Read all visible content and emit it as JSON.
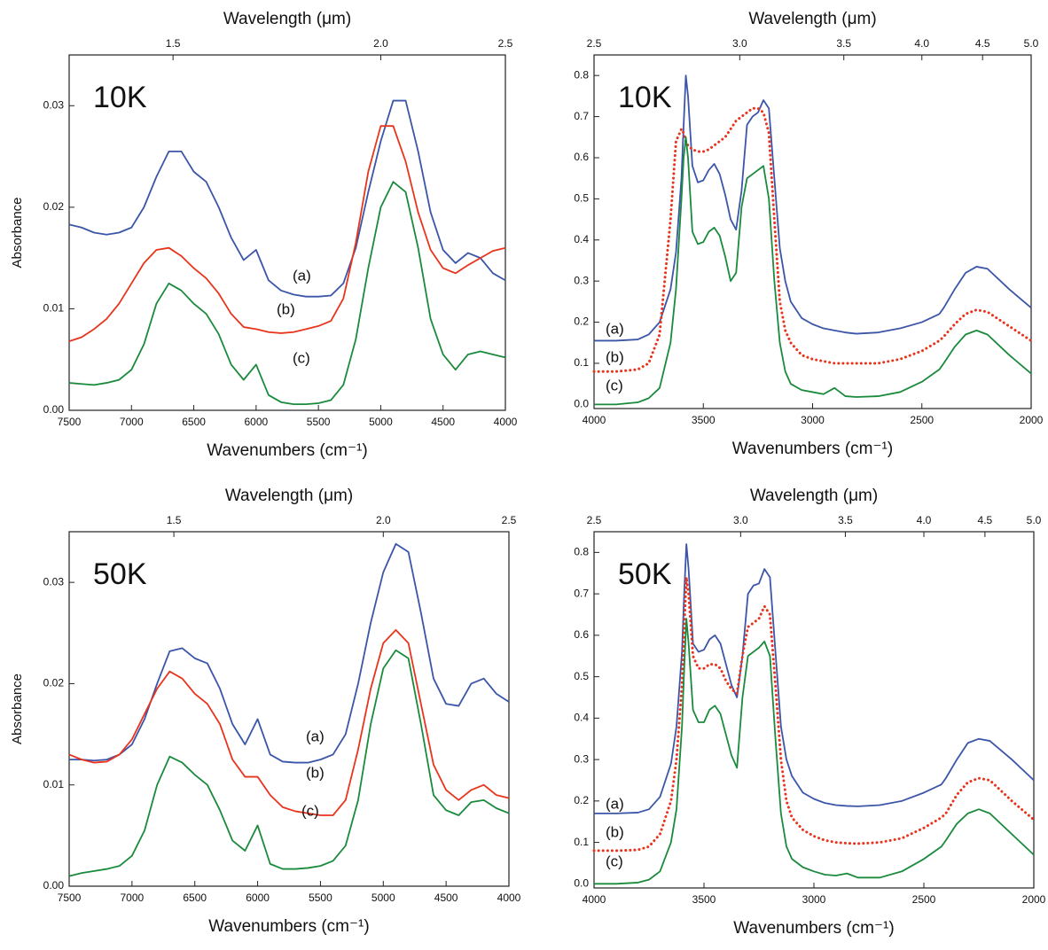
{
  "chart_data": [
    {
      "type": "line",
      "annotation": "10K",
      "x_label": "Wavenumbers (cm⁻¹)",
      "x2_label": "Wavelength (μm)",
      "y_label": "Absorbance",
      "x": [
        7500,
        7400,
        7300,
        7200,
        7100,
        7000,
        6900,
        6800,
        6700,
        6600,
        6500,
        6400,
        6300,
        6200,
        6100,
        6000,
        5900,
        5800,
        5700,
        5600,
        5500,
        5400,
        5300,
        5200,
        5100,
        5000,
        4900,
        4800,
        4700,
        4600,
        4500,
        4400,
        4300,
        4200,
        4100,
        4000
      ],
      "series": [
        {
          "name": "(a)",
          "color": "#3b55a8",
          "values": [
            0.0183,
            0.018,
            0.0175,
            0.0173,
            0.0175,
            0.018,
            0.02,
            0.023,
            0.0255,
            0.0255,
            0.0235,
            0.0225,
            0.02,
            0.017,
            0.0148,
            0.0158,
            0.0128,
            0.0118,
            0.0114,
            0.0112,
            0.0112,
            0.0113,
            0.0125,
            0.016,
            0.0215,
            0.0265,
            0.0305,
            0.0305,
            0.0255,
            0.0195,
            0.0158,
            0.0145,
            0.0155,
            0.015,
            0.0135,
            0.0128
          ]
        },
        {
          "name": "(b)",
          "color": "#e8341c",
          "values": [
            0.0068,
            0.0072,
            0.008,
            0.009,
            0.0105,
            0.0125,
            0.0145,
            0.0158,
            0.016,
            0.0152,
            0.014,
            0.013,
            0.0115,
            0.0095,
            0.0082,
            0.008,
            0.0077,
            0.0076,
            0.0077,
            0.008,
            0.0083,
            0.0088,
            0.011,
            0.0165,
            0.0235,
            0.028,
            0.028,
            0.0245,
            0.0195,
            0.0158,
            0.014,
            0.0135,
            0.0143,
            0.015,
            0.0157,
            0.016
          ]
        },
        {
          "name": "(c)",
          "color": "#1a8a3c",
          "values": [
            0.0027,
            0.0026,
            0.0025,
            0.0027,
            0.003,
            0.004,
            0.0065,
            0.0105,
            0.0125,
            0.0118,
            0.0105,
            0.0095,
            0.0075,
            0.0045,
            0.003,
            0.0045,
            0.0015,
            0.0008,
            0.0006,
            0.0006,
            0.0007,
            0.001,
            0.0025,
            0.007,
            0.014,
            0.02,
            0.0225,
            0.0215,
            0.016,
            0.009,
            0.0055,
            0.004,
            0.0055,
            0.0058,
            0.0055,
            0.0052
          ]
        }
      ],
      "xlim": [
        7500,
        4000
      ],
      "ylim": [
        0,
        0.035
      ],
      "xticks": [
        7500,
        7000,
        6500,
        6000,
        5500,
        5000,
        4500,
        4000
      ],
      "yticks": [
        {
          "value": 0,
          "label": "0.00"
        },
        {
          "value": 0.01,
          "label": "0.01"
        },
        {
          "value": 0.02,
          "label": "0.02"
        },
        {
          "value": 0.03,
          "label": "0.03"
        }
      ],
      "x2ticks": [
        1.5,
        {
          "value": 2,
          "label": "2.0"
        },
        2.5
      ]
    },
    {
      "type": "line",
      "annotation": "10K",
      "x_label": "Wavenumbers (cm⁻¹)",
      "x2_label": "Wavelength (μm)",
      "x": [
        4000,
        3900,
        3800,
        3750,
        3700,
        3650,
        3625,
        3600,
        3590,
        3580,
        3570,
        3550,
        3525,
        3500,
        3475,
        3450,
        3425,
        3400,
        3375,
        3350,
        3325,
        3300,
        3275,
        3250,
        3225,
        3200,
        3175,
        3150,
        3125,
        3100,
        3050,
        3000,
        2950,
        2900,
        2850,
        2800,
        2700,
        2600,
        2500,
        2420,
        2400,
        2350,
        2300,
        2250,
        2200,
        2100,
        2000
      ],
      "series": [
        {
          "name": "(a)",
          "color": "#3b55a8",
          "values": [
            0.155,
            0.155,
            0.158,
            0.17,
            0.2,
            0.28,
            0.37,
            0.55,
            0.68,
            0.8,
            0.75,
            0.58,
            0.54,
            0.545,
            0.57,
            0.585,
            0.56,
            0.51,
            0.45,
            0.425,
            0.52,
            0.68,
            0.7,
            0.71,
            0.74,
            0.72,
            0.55,
            0.38,
            0.3,
            0.25,
            0.21,
            0.195,
            0.185,
            0.18,
            0.175,
            0.172,
            0.175,
            0.185,
            0.2,
            0.22,
            0.235,
            0.28,
            0.32,
            0.335,
            0.33,
            0.28,
            0.235
          ]
        },
        {
          "name": "(b)",
          "color": "#e8341c",
          "line_style": "dotted",
          "values": [
            0.08,
            0.08,
            0.085,
            0.1,
            0.17,
            0.45,
            0.64,
            0.67,
            0.66,
            0.64,
            0.63,
            0.62,
            0.615,
            0.615,
            0.62,
            0.63,
            0.64,
            0.65,
            0.67,
            0.69,
            0.7,
            0.71,
            0.72,
            0.72,
            0.71,
            0.66,
            0.45,
            0.25,
            0.18,
            0.15,
            0.12,
            0.11,
            0.105,
            0.1,
            0.1,
            0.1,
            0.1,
            0.11,
            0.13,
            0.155,
            0.165,
            0.195,
            0.22,
            0.23,
            0.225,
            0.19,
            0.155
          ]
        },
        {
          "name": "(c)",
          "color": "#1a8a3c",
          "values": [
            0.0,
            0.0,
            0.005,
            0.015,
            0.04,
            0.15,
            0.28,
            0.5,
            0.6,
            0.65,
            0.6,
            0.42,
            0.39,
            0.395,
            0.42,
            0.43,
            0.41,
            0.36,
            0.3,
            0.32,
            0.48,
            0.55,
            0.56,
            0.57,
            0.58,
            0.5,
            0.3,
            0.15,
            0.08,
            0.05,
            0.035,
            0.03,
            0.025,
            0.04,
            0.02,
            0.018,
            0.02,
            0.03,
            0.055,
            0.085,
            0.1,
            0.14,
            0.17,
            0.18,
            0.17,
            0.12,
            0.075
          ]
        }
      ],
      "xlim": [
        4000,
        2000
      ],
      "ylim": [
        -0.01,
        0.85
      ],
      "xticks": [
        4000,
        3500,
        3000,
        2500,
        2000
      ],
      "yticks": [
        {
          "value": 0,
          "label": "0.0"
        },
        0.1,
        0.2,
        0.3,
        0.4,
        0.5,
        0.6,
        0.7,
        0.8
      ],
      "x2ticks": [
        2.5,
        {
          "value": 3,
          "label": "3.0"
        },
        3.5,
        {
          "value": 4,
          "label": "4.0"
        },
        4.5,
        {
          "value": 5,
          "label": "5.0"
        }
      ]
    },
    {
      "type": "line",
      "annotation": "50K",
      "x_label": "Wavenumbers (cm⁻¹)",
      "x2_label": "Wavelength (μm)",
      "y_label": "Absorbance",
      "x": [
        7500,
        7400,
        7300,
        7200,
        7100,
        7000,
        6900,
        6800,
        6700,
        6600,
        6500,
        6400,
        6300,
        6200,
        6100,
        6000,
        5900,
        5800,
        5700,
        5600,
        5500,
        5400,
        5300,
        5200,
        5100,
        5000,
        4900,
        4800,
        4700,
        4600,
        4500,
        4400,
        4300,
        4200,
        4100,
        4000
      ],
      "series": [
        {
          "name": "(a)",
          "color": "#3b55a8",
          "values": [
            0.0125,
            0.0125,
            0.0124,
            0.0125,
            0.013,
            0.014,
            0.0165,
            0.02,
            0.0232,
            0.0235,
            0.0225,
            0.022,
            0.0195,
            0.016,
            0.014,
            0.0165,
            0.013,
            0.0123,
            0.0122,
            0.0122,
            0.0125,
            0.013,
            0.015,
            0.02,
            0.026,
            0.031,
            0.0338,
            0.033,
            0.027,
            0.0205,
            0.018,
            0.0178,
            0.02,
            0.0205,
            0.019,
            0.0182
          ]
        },
        {
          "name": "(b)",
          "color": "#e8341c",
          "values": [
            0.013,
            0.0125,
            0.0122,
            0.0123,
            0.013,
            0.0145,
            0.017,
            0.0195,
            0.0212,
            0.0205,
            0.019,
            0.018,
            0.016,
            0.0125,
            0.0108,
            0.0108,
            0.009,
            0.0078,
            0.0074,
            0.0072,
            0.007,
            0.007,
            0.0085,
            0.0135,
            0.0195,
            0.024,
            0.0253,
            0.024,
            0.018,
            0.012,
            0.0095,
            0.0085,
            0.0095,
            0.01,
            0.009,
            0.0087
          ]
        },
        {
          "name": "(c)",
          "color": "#1a8a3c",
          "values": [
            0.001,
            0.0013,
            0.0015,
            0.0017,
            0.002,
            0.003,
            0.0055,
            0.01,
            0.0128,
            0.0122,
            0.011,
            0.01,
            0.0075,
            0.0045,
            0.0035,
            0.006,
            0.0022,
            0.0017,
            0.0017,
            0.0018,
            0.002,
            0.0025,
            0.004,
            0.0085,
            0.016,
            0.0215,
            0.0233,
            0.0225,
            0.016,
            0.009,
            0.0075,
            0.007,
            0.0083,
            0.0085,
            0.0077,
            0.0072
          ]
        }
      ],
      "xlim": [
        7500,
        4000
      ],
      "ylim": [
        0,
        0.035
      ],
      "xticks": [
        7500,
        7000,
        6500,
        6000,
        5500,
        5000,
        4500,
        4000
      ],
      "yticks": [
        {
          "value": 0,
          "label": "0.00"
        },
        {
          "value": 0.01,
          "label": "0.01"
        },
        {
          "value": 0.02,
          "label": "0.02"
        },
        {
          "value": 0.03,
          "label": "0.03"
        }
      ],
      "x2ticks": [
        1.5,
        {
          "value": 2,
          "label": "2.0"
        },
        2.5
      ]
    },
    {
      "type": "line",
      "annotation": "50K",
      "x_label": "Wavenumbers (cm⁻¹)",
      "x2_label": "Wavelength (μm)",
      "x": [
        4000,
        3900,
        3800,
        3750,
        3700,
        3650,
        3625,
        3600,
        3590,
        3580,
        3570,
        3550,
        3525,
        3500,
        3475,
        3450,
        3425,
        3400,
        3375,
        3350,
        3325,
        3300,
        3275,
        3250,
        3225,
        3200,
        3175,
        3150,
        3125,
        3100,
        3050,
        3000,
        2950,
        2900,
        2850,
        2800,
        2700,
        2600,
        2500,
        2420,
        2400,
        2350,
        2300,
        2250,
        2200,
        2100,
        2000
      ],
      "series": [
        {
          "name": "(a)",
          "color": "#3b55a8",
          "values": [
            0.17,
            0.17,
            0.172,
            0.18,
            0.21,
            0.29,
            0.38,
            0.56,
            0.7,
            0.82,
            0.76,
            0.58,
            0.56,
            0.565,
            0.59,
            0.6,
            0.58,
            0.53,
            0.48,
            0.45,
            0.55,
            0.7,
            0.72,
            0.725,
            0.76,
            0.74,
            0.56,
            0.38,
            0.3,
            0.26,
            0.22,
            0.205,
            0.195,
            0.19,
            0.188,
            0.187,
            0.19,
            0.2,
            0.22,
            0.24,
            0.255,
            0.3,
            0.34,
            0.35,
            0.345,
            0.3,
            0.25
          ]
        },
        {
          "name": "(b)",
          "color": "#e8341c",
          "line_style": "dotted",
          "values": [
            0.08,
            0.08,
            0.082,
            0.09,
            0.12,
            0.2,
            0.3,
            0.48,
            0.62,
            0.74,
            0.7,
            0.55,
            0.52,
            0.52,
            0.53,
            0.53,
            0.52,
            0.49,
            0.47,
            0.46,
            0.55,
            0.62,
            0.63,
            0.64,
            0.67,
            0.65,
            0.48,
            0.3,
            0.2,
            0.16,
            0.13,
            0.115,
            0.105,
            0.1,
            0.098,
            0.097,
            0.1,
            0.11,
            0.135,
            0.16,
            0.17,
            0.215,
            0.245,
            0.255,
            0.25,
            0.2,
            0.155
          ]
        },
        {
          "name": "(c)",
          "color": "#1a8a3c",
          "values": [
            0.0,
            0.0,
            0.003,
            0.01,
            0.03,
            0.1,
            0.18,
            0.38,
            0.52,
            0.64,
            0.58,
            0.42,
            0.39,
            0.39,
            0.42,
            0.43,
            0.41,
            0.36,
            0.31,
            0.28,
            0.45,
            0.55,
            0.56,
            0.57,
            0.585,
            0.55,
            0.35,
            0.17,
            0.09,
            0.06,
            0.04,
            0.03,
            0.022,
            0.02,
            0.025,
            0.015,
            0.015,
            0.03,
            0.06,
            0.09,
            0.105,
            0.145,
            0.17,
            0.18,
            0.17,
            0.12,
            0.07
          ]
        }
      ],
      "xlim": [
        4000,
        2000
      ],
      "ylim": [
        -0.01,
        0.85
      ],
      "xticks": [
        4000,
        3500,
        3000,
        2500,
        2000
      ],
      "yticks": [
        {
          "value": 0,
          "label": "0.0"
        },
        0.1,
        0.2,
        0.3,
        0.4,
        0.5,
        0.6,
        0.7,
        0.8
      ],
      "x2ticks": [
        2.5,
        {
          "value": 3,
          "label": "3.0"
        },
        3.5,
        {
          "value": 4,
          "label": "4.0"
        },
        4.5,
        {
          "value": 5,
          "label": "5.0"
        }
      ]
    }
  ]
}
